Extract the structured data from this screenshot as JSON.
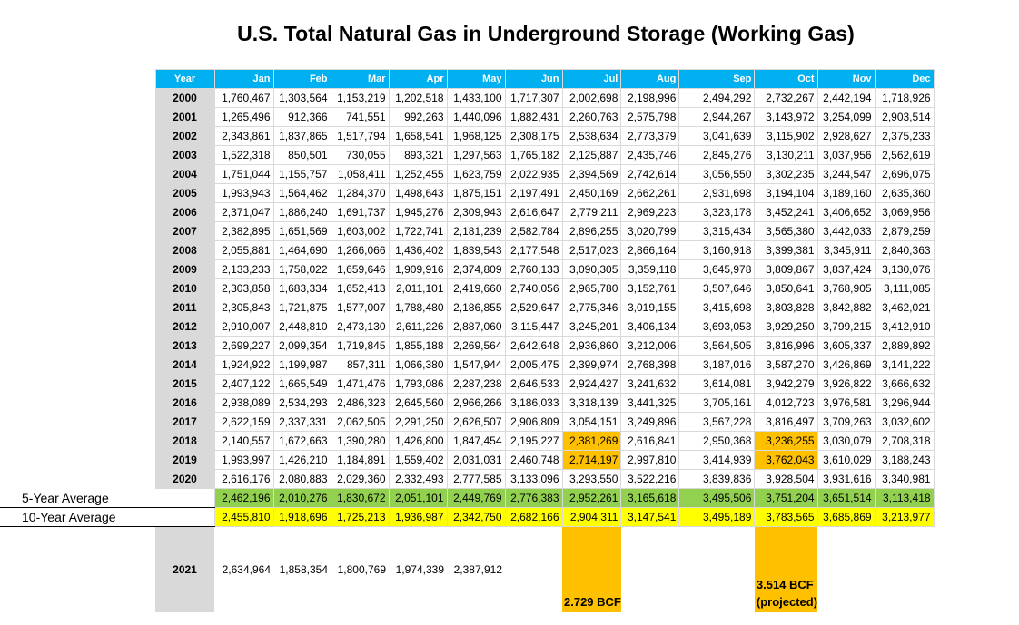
{
  "title": "U.S. Total Natural Gas in Underground Storage (Working Gas)",
  "header": [
    "Year",
    "Jan",
    "Feb",
    "Mar",
    "Apr",
    "May",
    "Jun",
    "Jul",
    "Aug",
    "Sep",
    "Oct",
    "Nov",
    "Dec"
  ],
  "rows": [
    {
      "year": "2000",
      "values": [
        "1,760,467",
        "1,303,564",
        "1,153,219",
        "1,202,518",
        "1,433,100",
        "1,717,307",
        "2,002,698",
        "2,198,996",
        "2,494,292",
        "2,732,267",
        "2,442,194",
        "1,718,926"
      ]
    },
    {
      "year": "2001",
      "values": [
        "1,265,496",
        "912,366",
        "741,551",
        "992,263",
        "1,440,096",
        "1,882,431",
        "2,260,763",
        "2,575,798",
        "2,944,267",
        "3,143,972",
        "3,254,099",
        "2,903,514"
      ]
    },
    {
      "year": "2002",
      "values": [
        "2,343,861",
        "1,837,865",
        "1,517,794",
        "1,658,541",
        "1,968,125",
        "2,308,175",
        "2,538,634",
        "2,773,379",
        "3,041,639",
        "3,115,902",
        "2,928,627",
        "2,375,233"
      ]
    },
    {
      "year": "2003",
      "values": [
        "1,522,318",
        "850,501",
        "730,055",
        "893,321",
        "1,297,563",
        "1,765,182",
        "2,125,887",
        "2,435,746",
        "2,845,276",
        "3,130,211",
        "3,037,956",
        "2,562,619"
      ]
    },
    {
      "year": "2004",
      "values": [
        "1,751,044",
        "1,155,757",
        "1,058,411",
        "1,252,455",
        "1,623,759",
        "2,022,935",
        "2,394,569",
        "2,742,614",
        "3,056,550",
        "3,302,235",
        "3,244,547",
        "2,696,075"
      ]
    },
    {
      "year": "2005",
      "values": [
        "1,993,943",
        "1,564,462",
        "1,284,370",
        "1,498,643",
        "1,875,151",
        "2,197,491",
        "2,450,169",
        "2,662,261",
        "2,931,698",
        "3,194,104",
        "3,189,160",
        "2,635,360"
      ]
    },
    {
      "year": "2006",
      "values": [
        "2,371,047",
        "1,886,240",
        "1,691,737",
        "1,945,276",
        "2,309,943",
        "2,616,647",
        "2,779,211",
        "2,969,223",
        "3,323,178",
        "3,452,241",
        "3,406,652",
        "3,069,956"
      ]
    },
    {
      "year": "2007",
      "values": [
        "2,382,895",
        "1,651,569",
        "1,603,002",
        "1,722,741",
        "2,181,239",
        "2,582,784",
        "2,896,255",
        "3,020,799",
        "3,315,434",
        "3,565,380",
        "3,442,033",
        "2,879,259"
      ]
    },
    {
      "year": "2008",
      "values": [
        "2,055,881",
        "1,464,690",
        "1,266,066",
        "1,436,402",
        "1,839,543",
        "2,177,548",
        "2,517,023",
        "2,866,164",
        "3,160,918",
        "3,399,381",
        "3,345,911",
        "2,840,363"
      ]
    },
    {
      "year": "2009",
      "values": [
        "2,133,233",
        "1,758,022",
        "1,659,646",
        "1,909,916",
        "2,374,809",
        "2,760,133",
        "3,090,305",
        "3,359,118",
        "3,645,978",
        "3,809,867",
        "3,837,424",
        "3,130,076"
      ]
    },
    {
      "year": "2010",
      "values": [
        "2,303,858",
        "1,683,334",
        "1,652,413",
        "2,011,101",
        "2,419,660",
        "2,740,056",
        "2,965,780",
        "3,152,761",
        "3,507,646",
        "3,850,641",
        "3,768,905",
        "3,111,085"
      ]
    },
    {
      "year": "2011",
      "values": [
        "2,305,843",
        "1,721,875",
        "1,577,007",
        "1,788,480",
        "2,186,855",
        "2,529,647",
        "2,775,346",
        "3,019,155",
        "3,415,698",
        "3,803,828",
        "3,842,882",
        "3,462,021"
      ]
    },
    {
      "year": "2012",
      "values": [
        "2,910,007",
        "2,448,810",
        "2,473,130",
        "2,611,226",
        "2,887,060",
        "3,115,447",
        "3,245,201",
        "3,406,134",
        "3,693,053",
        "3,929,250",
        "3,799,215",
        "3,412,910"
      ]
    },
    {
      "year": "2013",
      "values": [
        "2,699,227",
        "2,099,354",
        "1,719,845",
        "1,855,188",
        "2,269,564",
        "2,642,648",
        "2,936,860",
        "3,212,006",
        "3,564,505",
        "3,816,996",
        "3,605,337",
        "2,889,892"
      ]
    },
    {
      "year": "2014",
      "values": [
        "1,924,922",
        "1,199,987",
        "857,311",
        "1,066,380",
        "1,547,944",
        "2,005,475",
        "2,399,974",
        "2,768,398",
        "3,187,016",
        "3,587,270",
        "3,426,869",
        "3,141,222"
      ]
    },
    {
      "year": "2015",
      "values": [
        "2,407,122",
        "1,665,549",
        "1,471,476",
        "1,793,086",
        "2,287,238",
        "2,646,533",
        "2,924,427",
        "3,241,632",
        "3,614,081",
        "3,942,279",
        "3,926,822",
        "3,666,632"
      ]
    },
    {
      "year": "2016",
      "values": [
        "2,938,089",
        "2,534,293",
        "2,486,323",
        "2,645,560",
        "2,966,266",
        "3,186,033",
        "3,318,139",
        "3,441,325",
        "3,705,161",
        "4,012,723",
        "3,976,581",
        "3,296,944"
      ]
    },
    {
      "year": "2017",
      "values": [
        "2,622,159",
        "2,337,331",
        "2,062,505",
        "2,291,250",
        "2,626,507",
        "2,906,809",
        "3,054,151",
        "3,249,896",
        "3,567,228",
        "3,816,497",
        "3,709,263",
        "3,032,602"
      ]
    },
    {
      "year": "2018",
      "values": [
        "2,140,557",
        "1,672,663",
        "1,390,280",
        "1,426,800",
        "1,847,454",
        "2,195,227",
        "2,381,269",
        "2,616,841",
        "2,950,368",
        "3,236,255",
        "3,030,079",
        "2,708,318"
      ]
    },
    {
      "year": "2019",
      "values": [
        "1,993,997",
        "1,426,210",
        "1,184,891",
        "1,559,402",
        "2,031,031",
        "2,460,748",
        "2,714,197",
        "2,997,810",
        "3,414,939",
        "3,762,043",
        "3,610,029",
        "3,188,243"
      ]
    },
    {
      "year": "2020",
      "values": [
        "2,616,176",
        "2,080,883",
        "2,029,360",
        "2,332,493",
        "2,777,585",
        "3,133,096",
        "3,293,550",
        "3,522,216",
        "3,839,836",
        "3,928,504",
        "3,931,616",
        "3,340,981"
      ]
    }
  ],
  "highlight_color": "#ffc000",
  "highlighted_cells": [
    {
      "year": "2018",
      "months": [
        "Jul",
        "Oct"
      ]
    },
    {
      "year": "2019",
      "months": [
        "Jul",
        "Oct"
      ]
    }
  ],
  "averages": [
    {
      "label": "5-Year Average",
      "color": "#92d050",
      "values": [
        "2,462,196",
        "2,010,276",
        "1,830,672",
        "2,051,101",
        "2,449,769",
        "2,776,383",
        "2,952,261",
        "3,165,618",
        "3,495,506",
        "3,751,204",
        "3,651,514",
        "3,113,418"
      ]
    },
    {
      "label": "10-Year Average",
      "color": "#ffff00",
      "values": [
        "2,455,810",
        "1,918,696",
        "1,725,213",
        "1,936,987",
        "2,342,750",
        "2,682,166",
        "2,904,311",
        "3,147,541",
        "3,495,189",
        "3,783,565",
        "3,685,869",
        "3,213,977"
      ]
    }
  ],
  "row_2021": {
    "year": "2021",
    "values": [
      "2,634,964",
      "1,858,354",
      "1,800,769",
      "1,974,339",
      "2,387,912"
    ],
    "jul_note": "2.729 BCF",
    "oct_note_line1": "3.514 BCF",
    "oct_note_line2": "(projected)"
  },
  "header_color": "#00b0f0"
}
